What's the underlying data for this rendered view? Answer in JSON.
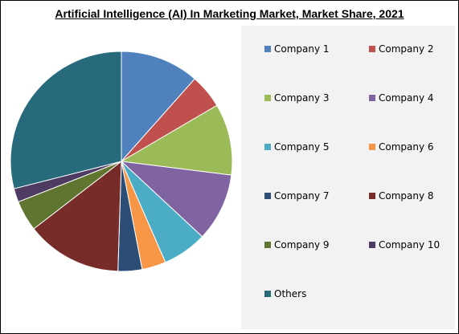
{
  "chart_data": {
    "type": "pie",
    "title": "Artificial Intelligence (AI) In Marketing Market, Market Share, 2021",
    "slices": [
      {
        "label": "Company 1",
        "value": 11.5,
        "color": "#4f81bd"
      },
      {
        "label": "Company 2",
        "value": 5.0,
        "color": "#c0504d"
      },
      {
        "label": "Company 3",
        "value": 10.5,
        "color": "#9bbb59"
      },
      {
        "label": "Company 4",
        "value": 10.0,
        "color": "#8064a2"
      },
      {
        "label": "Company 5",
        "value": 6.5,
        "color": "#4bacc6"
      },
      {
        "label": "Company 6",
        "value": 3.5,
        "color": "#f79646"
      },
      {
        "label": "Company 7",
        "value": 3.5,
        "color": "#2c4d75"
      },
      {
        "label": "Company 8",
        "value": 14.0,
        "color": "#772c2a"
      },
      {
        "label": "Company 9",
        "value": 4.5,
        "color": "#5f7530"
      },
      {
        "label": "Company 10",
        "value": 2.0,
        "color": "#4d3b62"
      },
      {
        "label": "Others",
        "value": 29.0,
        "color": "#276a7c"
      }
    ],
    "legend_position": "right",
    "start_angle": "12 o'clock",
    "direction": "clockwise"
  }
}
